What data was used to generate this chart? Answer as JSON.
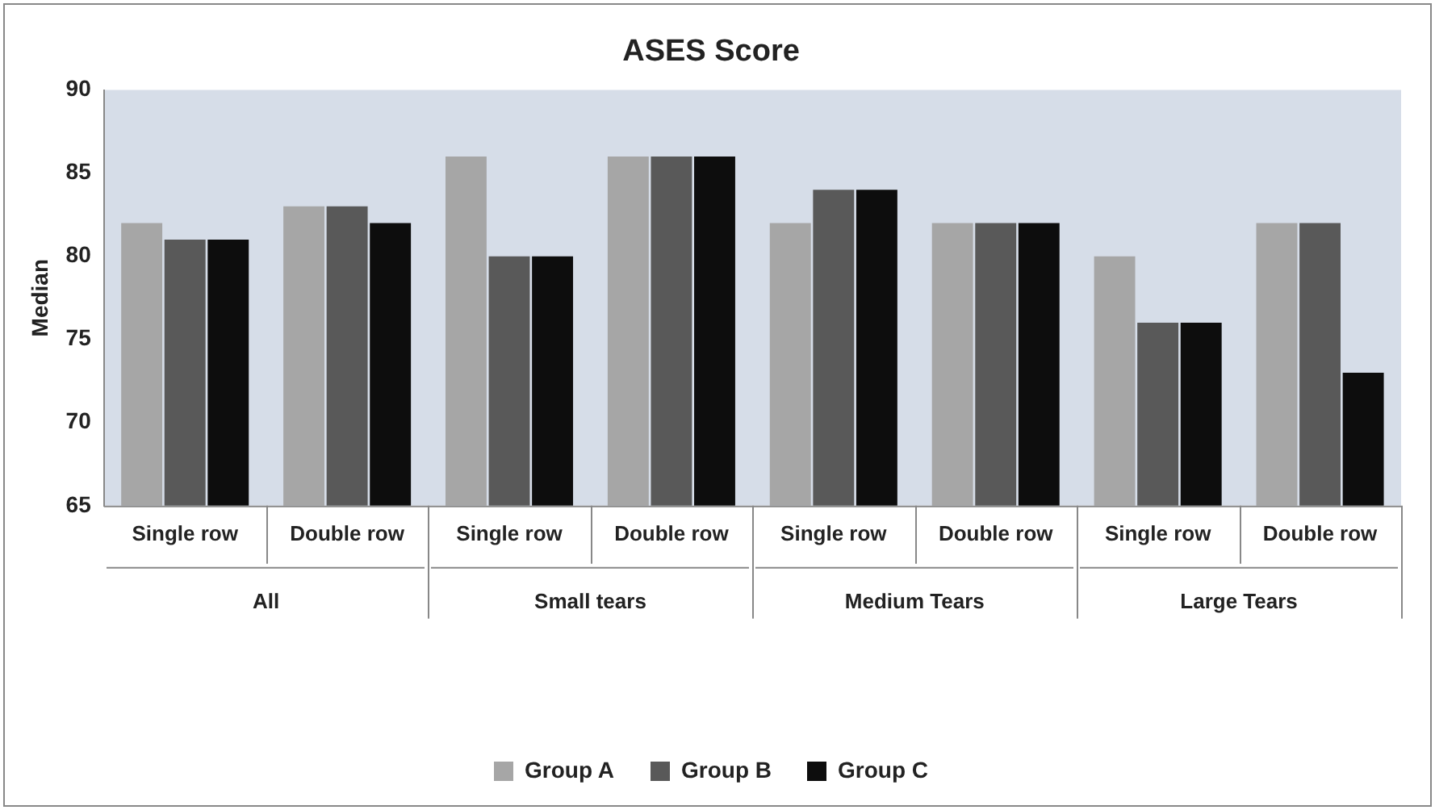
{
  "chart_data": {
    "type": "bar",
    "title": "ASES Score",
    "ylabel": "Median",
    "categories": [
      "Single row",
      "Double row",
      "Single row",
      "Double row",
      "Single row",
      "Double row",
      "Single row",
      "Double row"
    ],
    "annotations": [
      "All",
      "Small tears",
      "Medium Tears",
      "Large Tears"
    ],
    "series": [
      {
        "name": "Group A",
        "color": "#a6a6a6",
        "values": [
          82,
          83,
          86,
          86,
          82,
          82,
          80,
          82
        ]
      },
      {
        "name": "Group B",
        "color": "#595959",
        "values": [
          81,
          83,
          80,
          86,
          84,
          82,
          76,
          82
        ]
      },
      {
        "name": "Group C",
        "color": "#0d0d0d",
        "values": [
          81,
          82,
          80,
          86,
          84,
          82,
          76,
          73
        ]
      }
    ],
    "ylim": [
      65,
      90
    ],
    "yticks": [
      65,
      70,
      75,
      80,
      85,
      90
    ],
    "grid": false,
    "legend": "bottom"
  }
}
